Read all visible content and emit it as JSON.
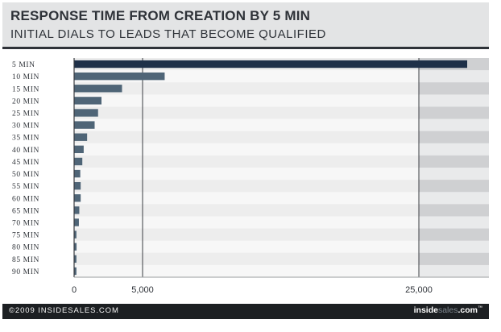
{
  "header": {
    "title": "RESPONSE TIME FROM CREATION BY 5 MIN",
    "subtitle": "INITIAL DIALS TO LEADS THAT BECOME QUALIFIED"
  },
  "footer": {
    "copyright": "©2009 INSIDESALES.COM",
    "brand_prefix": "inside",
    "brand_accent": "sales",
    "brand_suffix": ".com",
    "brand_mark": "™"
  },
  "colors": {
    "top_bar": "#1e3048",
    "bars": "#4f6577",
    "header_bg": "#e3e4e5",
    "footer_bg": "#1c1f22"
  },
  "chart_data": {
    "type": "bar",
    "orientation": "horizontal",
    "title": "RESPONSE TIME FROM CREATION BY 5 MIN",
    "subtitle": "INITIAL DIALS TO LEADS THAT BECOME QUALIFIED",
    "categories": [
      "5 MIN",
      "10 MIN",
      "15 MIN",
      "20 MIN",
      "25 MIN",
      "30 MIN",
      "35 MIN",
      "40 MIN",
      "45 MIN",
      "50 MIN",
      "55 MIN",
      "60 MIN",
      "65 MIN",
      "70 MIN",
      "75 MIN",
      "80 MIN",
      "85 MIN",
      "90 MIN"
    ],
    "values": [
      28500,
      6600,
      3500,
      2000,
      1750,
      1500,
      950,
      700,
      600,
      450,
      480,
      480,
      380,
      350,
      170,
      180,
      170,
      170
    ],
    "xticks": [
      0,
      5000,
      25000
    ],
    "xtick_labels": [
      "0",
      "5,000",
      "25,000"
    ],
    "x_axis": "piecewise linear: 0–5,000 and 5,000–25,000 compressed segments, range continues past 25,000",
    "xlim": [
      0,
      30000
    ],
    "grid": "vertical lines at 5,000 and 25,000",
    "legend": "none",
    "xlabel": "",
    "ylabel": ""
  }
}
